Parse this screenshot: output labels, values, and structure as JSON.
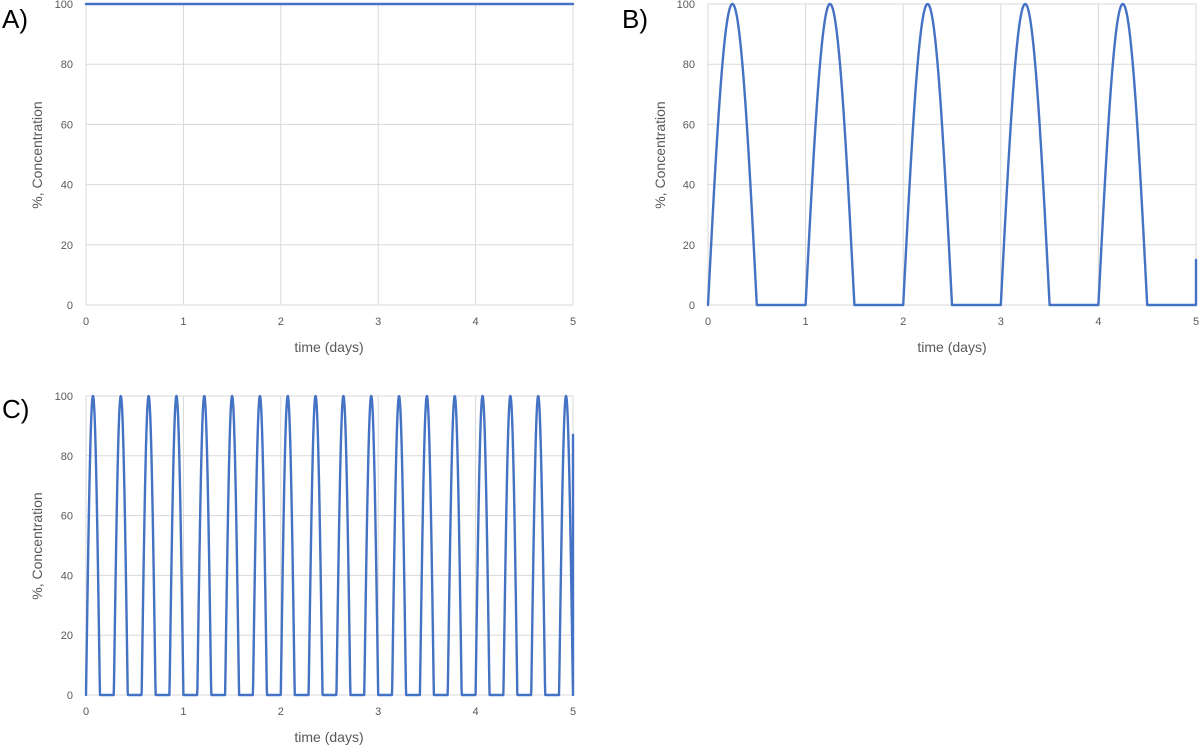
{
  "colors": {
    "series": "#4472c4",
    "grid": "#d9d9d9",
    "tick": "#595959"
  },
  "chart_data": [
    {
      "id": "A",
      "panel_label": "A)",
      "type": "line",
      "title": "",
      "xlabel": "time (days)",
      "ylabel": "%, Concentration",
      "xlim": [
        0,
        5
      ],
      "ylim": [
        0,
        100
      ],
      "x_ticks": [
        0,
        1,
        2,
        3,
        4,
        5
      ],
      "y_ticks": [
        0,
        20,
        40,
        60,
        80,
        100
      ],
      "grid": true,
      "legend": "none",
      "series": [
        {
          "model": "constant",
          "value": 100,
          "x": [
            0,
            5
          ],
          "values": [
            100,
            100
          ]
        }
      ]
    },
    {
      "id": "B",
      "panel_label": "B)",
      "type": "line",
      "title": "",
      "xlabel": "time (days)",
      "ylabel": "%, Concentration",
      "xlim": [
        0,
        5
      ],
      "ylim": [
        0,
        100
      ],
      "x_ticks": [
        0,
        1,
        2,
        3,
        4,
        5
      ],
      "y_ticks": [
        0,
        20,
        40,
        60,
        80,
        100
      ],
      "grid": true,
      "legend": "none",
      "series": [
        {
          "model": "clipped-sine",
          "period_days": 1,
          "amplitude": 100,
          "cycles": 5,
          "peak_times": [
            0.25,
            1.25,
            2.25,
            3.25,
            4.25
          ],
          "peak_value": 100,
          "end_value": 15
        }
      ]
    },
    {
      "id": "C",
      "panel_label": "C)",
      "type": "line",
      "title": "",
      "xlabel": "time (days)",
      "ylabel": "%, Concentration",
      "xlim": [
        0,
        5
      ],
      "ylim": [
        0,
        100
      ],
      "x_ticks": [
        0,
        1,
        2,
        3,
        4,
        5
      ],
      "y_ticks": [
        0,
        20,
        40,
        60,
        80,
        100
      ],
      "grid": true,
      "legend": "none",
      "series": [
        {
          "model": "clipped-sine",
          "period_days": 0.2857,
          "amplitude": 100,
          "cycles": 17.5,
          "peak_value": 100,
          "end_value": 87
        }
      ]
    }
  ]
}
